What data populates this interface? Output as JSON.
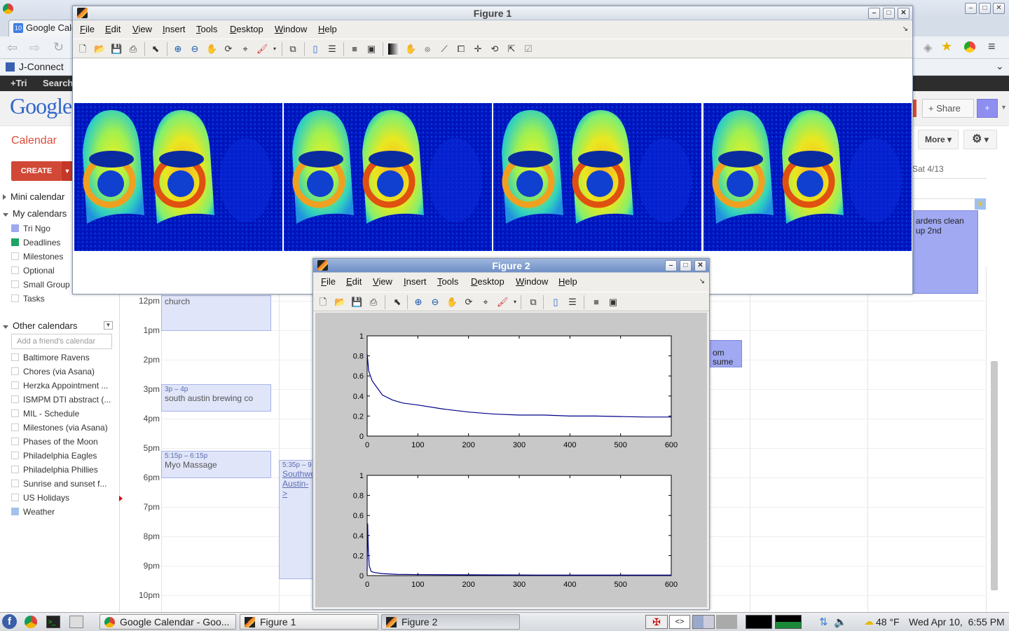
{
  "browser": {
    "tab_label": "Google Cale",
    "bookmark": "J-Connect",
    "gbar": {
      "plus": "+Tri",
      "search": "Search"
    },
    "logo": "Google",
    "calendar_title": "Calendar",
    "create_label": "CREATE",
    "share_label": "Share",
    "more_label": "More",
    "day_header": "Sat 4/13"
  },
  "sidebar": {
    "mini_calendar": "Mini calendar",
    "my_calendars": "My calendars",
    "my_items": [
      {
        "label": "Tri Ngo",
        "color": "#9fa8ef"
      },
      {
        "label": "Deadlines",
        "color": "#1fa463"
      },
      {
        "label": "Milestones",
        "color": ""
      },
      {
        "label": "Optional",
        "color": ""
      },
      {
        "label": "Small Group",
        "color": ""
      },
      {
        "label": "Tasks",
        "color": ""
      }
    ],
    "other_calendars": "Other calendars",
    "add_friend_placeholder": "Add a friend's calendar",
    "other_items": [
      {
        "label": "Baltimore Ravens"
      },
      {
        "label": "Chores (via Asana)"
      },
      {
        "label": "Herzka Appointment ..."
      },
      {
        "label": "ISMPM DTI abstract (..."
      },
      {
        "label": "MIL - Schedule"
      },
      {
        "label": "Milestones (via Asana)"
      },
      {
        "label": "Phases of the Moon"
      },
      {
        "label": "Philadelphia Eagles"
      },
      {
        "label": "Philadelphia Phillies"
      },
      {
        "label": "Sunrise and sunset f..."
      },
      {
        "label": "US Holidays"
      },
      {
        "label": "Weather",
        "color": "#a3c2ea"
      }
    ]
  },
  "calendar_grid": {
    "times": [
      "12pm",
      "1pm",
      "2pm",
      "3pm",
      "4pm",
      "5pm",
      "6pm",
      "7pm",
      "8pm",
      "9pm",
      "10pm"
    ],
    "events": [
      {
        "time": "",
        "name": "church"
      },
      {
        "time": "3p – 4p",
        "name": "south austin brewing co"
      },
      {
        "time": "5:15p – 6:15p",
        "name": "Myo Massage"
      },
      {
        "time": "5:35p – 9",
        "name": "Southwe Austin->"
      },
      {
        "time": "",
        "name": "om sume"
      },
      {
        "time": "",
        "name": "ardens clean up 2nd"
      }
    ]
  },
  "figure1": {
    "title": "Figure 1",
    "menu": [
      "File",
      "Edit",
      "View",
      "Insert",
      "Tools",
      "Desktop",
      "Window",
      "Help"
    ]
  },
  "figure2": {
    "title": "Figure 2",
    "menu": [
      "File",
      "Edit",
      "View",
      "Insert",
      "Tools",
      "Desktop",
      "Window",
      "Help"
    ]
  },
  "chart_data": [
    {
      "type": "line",
      "xlim": [
        0,
        600
      ],
      "ylim": [
        0,
        1
      ],
      "xticks": [
        0,
        100,
        200,
        300,
        400,
        500,
        600
      ],
      "yticks": [
        0,
        0.2,
        0.4,
        0.6,
        0.8,
        1
      ],
      "series": [
        {
          "color": "#00008b",
          "x": [
            0,
            3,
            10,
            20,
            30,
            50,
            70,
            100,
            150,
            200,
            250,
            300,
            350,
            400,
            450,
            500,
            550,
            600
          ],
          "y": [
            0.82,
            0.65,
            0.55,
            0.48,
            0.41,
            0.36,
            0.33,
            0.31,
            0.27,
            0.24,
            0.22,
            0.21,
            0.21,
            0.2,
            0.2,
            0.195,
            0.19,
            0.19
          ]
        }
      ]
    },
    {
      "type": "line",
      "xlim": [
        0,
        600
      ],
      "ylim": [
        0,
        1
      ],
      "xticks": [
        0,
        100,
        200,
        300,
        400,
        500,
        600
      ],
      "yticks": [
        0,
        0.2,
        0.4,
        0.6,
        0.8,
        1
      ],
      "series": [
        {
          "color": "#00008b",
          "x": [
            0,
            1,
            2,
            4,
            8,
            15,
            30,
            60,
            100,
            200,
            300,
            400,
            500,
            600
          ],
          "y": [
            0.05,
            0.52,
            0.3,
            0.1,
            0.04,
            0.03,
            0.02,
            0.012,
            0.01,
            0.008,
            0.006,
            0.005,
            0.005,
            0.005
          ]
        }
      ]
    }
  ],
  "taskbar": {
    "items": [
      "Google Calendar - Goo...",
      "Figure 1",
      "Figure 2"
    ],
    "weather": "48 °F",
    "clock": "Wed Apr 10,  6:55 PM"
  }
}
